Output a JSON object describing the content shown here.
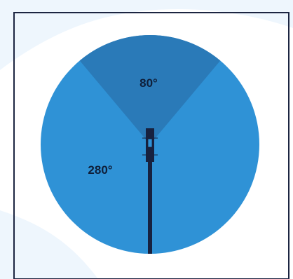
{
  "diagram": {
    "narrow_sector": {
      "label": "80°",
      "degrees": 80
    },
    "wide_sector": {
      "label": "280°",
      "degrees": 280
    }
  },
  "colors": {
    "narrow_sector": "#2a7ab8",
    "wide_sector": "#2f92d6",
    "pole": "#17213f",
    "frame": "#1c2541",
    "backdrop_swoosh": "#e8f3fc"
  }
}
